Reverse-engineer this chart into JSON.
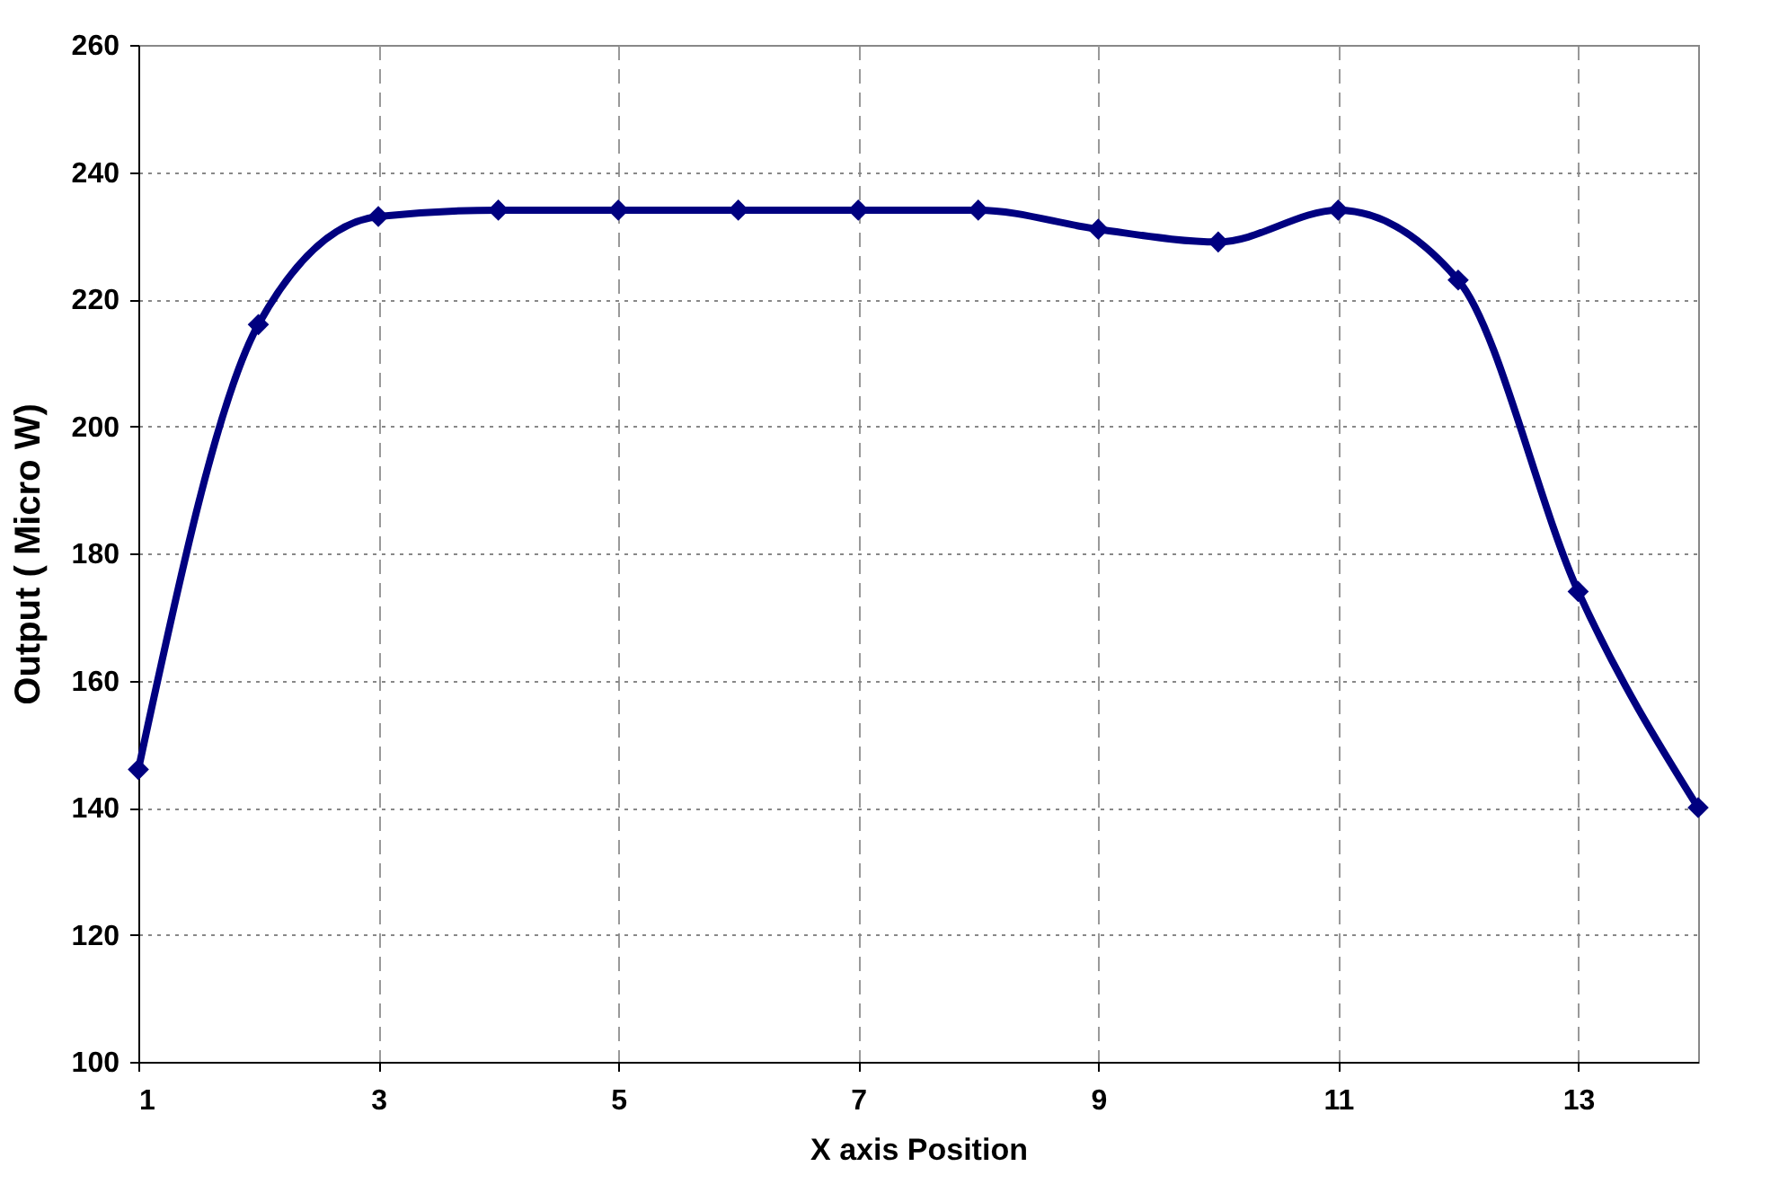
{
  "chart_data": {
    "type": "line",
    "xlabel": "X axis Position",
    "ylabel": "Output ( Micro W)",
    "x": [
      1,
      2,
      3,
      4,
      5,
      6,
      7,
      8,
      9,
      10,
      11,
      12,
      13,
      14
    ],
    "series": [
      {
        "color": "#000080",
        "values": [
          146,
          216,
          233,
          234,
          234,
          234,
          234,
          234,
          231,
          229,
          234,
          223,
          174,
          140
        ]
      }
    ],
    "xlim": [
      1,
      14
    ],
    "xticks": [
      1,
      3,
      5,
      7,
      9,
      11,
      13
    ],
    "ylim": [
      100,
      260
    ],
    "yticks": [
      100,
      120,
      140,
      160,
      180,
      200,
      220,
      240,
      260
    ],
    "grid": true,
    "marker": "diamond",
    "line_style": "solid",
    "legend": false
  }
}
